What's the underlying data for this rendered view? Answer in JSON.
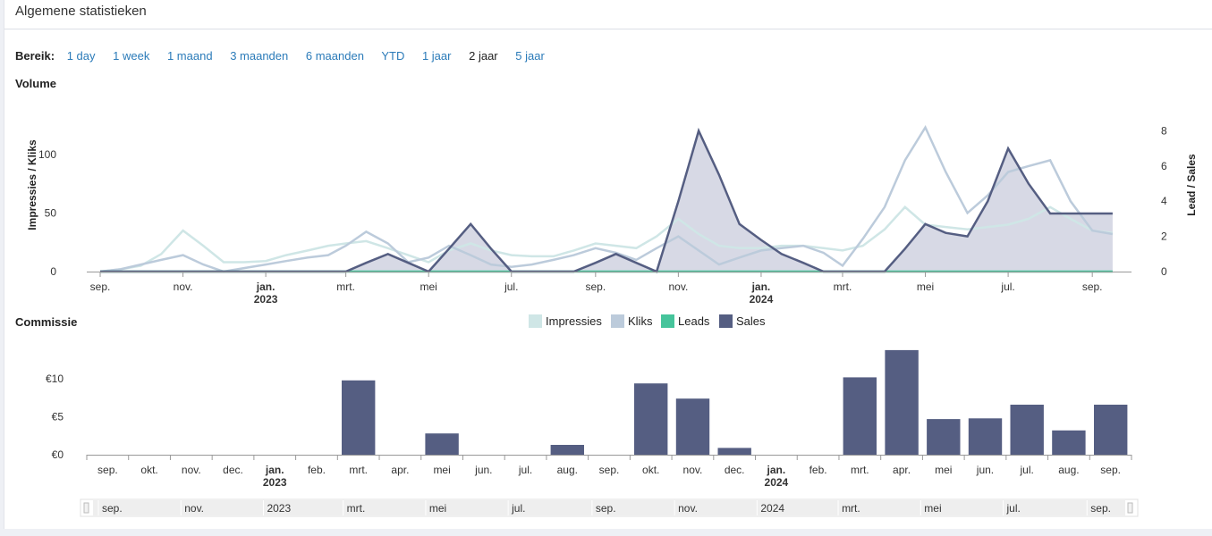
{
  "header": {
    "title": "Algemene statistieken"
  },
  "range": {
    "label": "Bereik:",
    "options": [
      "1 day",
      "1 week",
      "1 maand",
      "3 maanden",
      "6 maanden",
      "YTD",
      "1 jaar",
      "2 jaar",
      "5 jaar"
    ],
    "active": "2 jaar"
  },
  "colors": {
    "impressions": "#cfe6e6",
    "clicks": "#bccbdb",
    "leads": "#46c49b",
    "sales": "#555e82",
    "sales_fill": "#cdd0de",
    "axis": "#999999"
  },
  "chart_data": [
    {
      "type": "line",
      "title": "Volume",
      "ylabel": "Impressies / Kliks",
      "y2label": "Lead / Sales",
      "ylim": [
        0,
        125
      ],
      "y2lim": [
        0,
        8.33
      ],
      "yticks": [
        "0",
        "50",
        "100"
      ],
      "y2ticks": [
        "0",
        "2",
        "4",
        "6",
        "8"
      ],
      "xticks": [
        {
          "label": "sep."
        },
        {
          "label": "nov."
        },
        {
          "label": "jan.",
          "year": "2023"
        },
        {
          "label": "mrt."
        },
        {
          "label": "mei"
        },
        {
          "label": "jul."
        },
        {
          "label": "sep."
        },
        {
          "label": "nov."
        },
        {
          "label": "jan.",
          "year": "2024"
        },
        {
          "label": "mrt."
        },
        {
          "label": "mei"
        },
        {
          "label": "jul."
        },
        {
          "label": "sep."
        }
      ],
      "x": [
        "2022-09-01",
        "2022-09-16",
        "2022-10-01",
        "2022-10-16",
        "2022-11-01",
        "2022-11-16",
        "2022-12-01",
        "2022-12-16",
        "2023-01-01",
        "2023-01-16",
        "2023-02-01",
        "2023-02-16",
        "2023-03-01",
        "2023-03-16",
        "2023-04-01",
        "2023-04-16",
        "2023-05-01",
        "2023-05-16",
        "2023-06-01",
        "2023-06-16",
        "2023-07-01",
        "2023-07-16",
        "2023-08-01",
        "2023-08-16",
        "2023-09-01",
        "2023-09-16",
        "2023-10-01",
        "2023-10-16",
        "2023-11-01",
        "2023-11-16",
        "2023-12-01",
        "2023-12-16",
        "2024-01-01",
        "2024-01-16",
        "2024-02-01",
        "2024-02-16",
        "2024-03-01",
        "2024-03-16",
        "2024-04-01",
        "2024-04-16",
        "2024-05-01",
        "2024-05-16",
        "2024-06-01",
        "2024-06-16",
        "2024-07-01",
        "2024-07-16",
        "2024-08-01",
        "2024-08-16",
        "2024-09-01",
        "2024-09-16"
      ],
      "series": [
        {
          "name": "Impressies",
          "axis": "left",
          "style": "line",
          "values": [
            0,
            2,
            5,
            15,
            35,
            22,
            8,
            8,
            9,
            14,
            18,
            22,
            24,
            26,
            20,
            14,
            8,
            18,
            24,
            18,
            14,
            13,
            13,
            18,
            24,
            22,
            20,
            30,
            45,
            32,
            22,
            20,
            20,
            22,
            22,
            20,
            18,
            22,
            36,
            55,
            40,
            38,
            36,
            38,
            40,
            45,
            55,
            45,
            35,
            33
          ]
        },
        {
          "name": "Kliks",
          "axis": "left",
          "style": "line",
          "values": [
            0,
            2,
            6,
            10,
            14,
            6,
            0,
            3,
            6,
            9,
            12,
            14,
            22,
            34,
            24,
            8,
            12,
            22,
            14,
            6,
            4,
            6,
            10,
            14,
            20,
            16,
            10,
            20,
            30,
            18,
            6,
            12,
            18,
            20,
            22,
            16,
            5,
            28,
            55,
            95,
            123,
            85,
            50,
            65,
            85,
            90,
            95,
            60,
            35,
            32
          ]
        },
        {
          "name": "Leads",
          "axis": "right",
          "style": "line",
          "values": [
            0,
            0,
            0,
            0,
            0,
            0,
            0,
            0,
            0,
            0,
            0,
            0,
            0,
            0,
            0,
            0,
            0,
            0,
            0,
            0,
            0,
            0,
            0,
            0,
            0,
            0,
            0,
            0,
            0,
            0,
            0,
            0,
            0,
            0,
            0,
            0,
            0,
            0,
            0,
            0,
            0,
            0,
            0,
            0,
            0,
            0,
            0,
            0,
            0,
            0
          ]
        },
        {
          "name": "Sales",
          "axis": "right",
          "style": "area",
          "values": [
            0,
            0,
            0,
            0,
            0,
            0,
            0,
            0,
            0,
            0,
            0,
            0,
            0,
            0.5,
            1,
            0.5,
            0,
            1.3,
            2.7,
            1.3,
            0,
            0,
            0,
            0,
            0.5,
            1,
            0.5,
            0,
            4,
            8,
            5.5,
            2.7,
            1.8,
            1,
            0.5,
            0,
            0,
            0,
            0,
            1.3,
            2.7,
            2.2,
            2,
            4,
            7,
            5,
            3.3,
            3.3,
            3.3,
            3.3
          ]
        }
      ]
    },
    {
      "type": "bar",
      "title": "Commissie",
      "ylim": [
        0,
        14
      ],
      "yticks": [
        "€0",
        "€5",
        "€10"
      ],
      "categories": [
        {
          "label": "sep."
        },
        {
          "label": "okt."
        },
        {
          "label": "nov."
        },
        {
          "label": "dec."
        },
        {
          "label": "jan.",
          "year": "2023"
        },
        {
          "label": "feb."
        },
        {
          "label": "mrt."
        },
        {
          "label": "apr."
        },
        {
          "label": "mei"
        },
        {
          "label": "jun."
        },
        {
          "label": "jul."
        },
        {
          "label": "aug."
        },
        {
          "label": "sep."
        },
        {
          "label": "okt."
        },
        {
          "label": "nov."
        },
        {
          "label": "dec."
        },
        {
          "label": "jan.",
          "year": "2024"
        },
        {
          "label": "feb."
        },
        {
          "label": "mrt."
        },
        {
          "label": "apr."
        },
        {
          "label": "mei"
        },
        {
          "label": "jun."
        },
        {
          "label": "jul."
        },
        {
          "label": "aug."
        },
        {
          "label": "sep."
        }
      ],
      "series": [
        {
          "name": "Sales",
          "values": [
            0,
            0,
            0,
            0,
            0,
            0,
            9.8,
            0,
            2.8,
            0,
            0,
            1.3,
            0,
            9.4,
            7.4,
            0.9,
            0,
            0,
            10.2,
            13.8,
            4.7,
            4.8,
            6.6,
            3.2,
            6.6
          ]
        }
      ]
    }
  ],
  "navigator": {
    "labels": [
      "sep.",
      "nov.",
      "2023",
      "mrt.",
      "mei",
      "jul.",
      "sep.",
      "nov.",
      "2024",
      "mrt.",
      "mei",
      "jul.",
      "sep."
    ]
  }
}
